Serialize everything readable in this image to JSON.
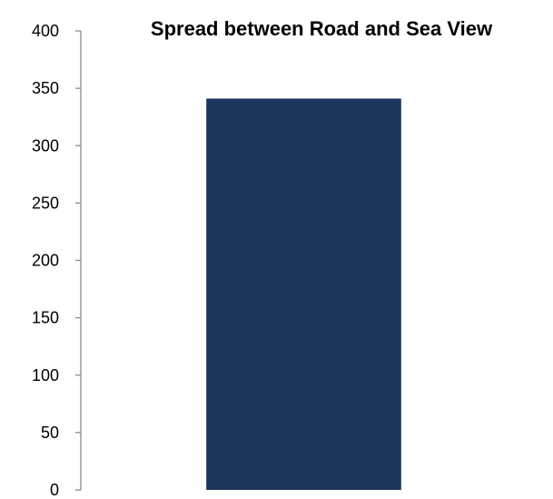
{
  "chart_data": {
    "type": "bar",
    "title": "Spread between Road and Sea View",
    "categories": [
      ""
    ],
    "values": [
      341
    ],
    "ylim": [
      0,
      400
    ],
    "yticks": [
      0,
      50,
      100,
      150,
      200,
      250,
      300,
      350,
      400
    ],
    "grid": false,
    "legend": "none",
    "bar_color": "#1a365d"
  }
}
